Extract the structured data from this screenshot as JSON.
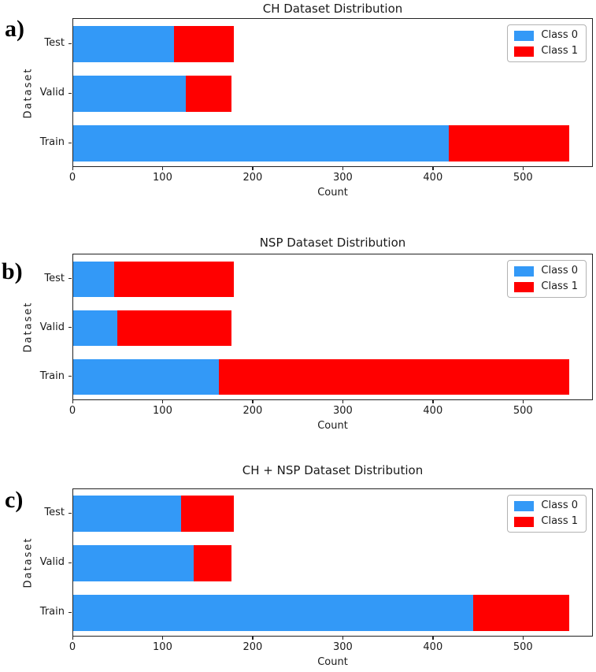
{
  "figure": {
    "background": "#ffffff",
    "class0_color": "#3399f7",
    "class1_color": "#ff0000"
  },
  "chart_data": [
    {
      "type": "bar",
      "orientation": "horizontal",
      "stacked": true,
      "panel_label": "a)",
      "title": "CH Dataset Distribution",
      "xlabel": "Count",
      "ylabel": "Dataset",
      "categories": [
        "Test",
        "Valid",
        "Train"
      ],
      "series": [
        {
          "name": "Class 0",
          "color": "#3399f7",
          "values": [
            112,
            125,
            417
          ]
        },
        {
          "name": "Class 1",
          "color": "#ff0000",
          "values": [
            66,
            51,
            133
          ]
        }
      ],
      "totals": [
        178,
        176,
        550
      ],
      "xticks": [
        0,
        100,
        200,
        300,
        400,
        500
      ],
      "xlim": [
        0,
        577.5
      ],
      "grid": false,
      "legend_position": "upper right"
    },
    {
      "type": "bar",
      "orientation": "horizontal",
      "stacked": true,
      "panel_label": "b)",
      "title": "NSP Dataset Distribution",
      "xlabel": "Count",
      "ylabel": "Dataset",
      "categories": [
        "Test",
        "Valid",
        "Train"
      ],
      "series": [
        {
          "name": "Class 0",
          "color": "#3399f7",
          "values": [
            45,
            49,
            162
          ]
        },
        {
          "name": "Class 1",
          "color": "#ff0000",
          "values": [
            133,
            127,
            388
          ]
        }
      ],
      "totals": [
        178,
        176,
        550
      ],
      "xticks": [
        0,
        100,
        200,
        300,
        400,
        500
      ],
      "xlim": [
        0,
        577.5
      ],
      "grid": false,
      "legend_position": "upper right"
    },
    {
      "type": "bar",
      "orientation": "horizontal",
      "stacked": true,
      "panel_label": "c)",
      "title": "CH + NSP Dataset Distribution",
      "xlabel": "Count",
      "ylabel": "Dataset",
      "categories": [
        "Test",
        "Valid",
        "Train"
      ],
      "series": [
        {
          "name": "Class 0",
          "color": "#3399f7",
          "values": [
            120,
            134,
            444
          ]
        },
        {
          "name": "Class 1",
          "color": "#ff0000",
          "values": [
            58,
            42,
            106
          ]
        }
      ],
      "totals": [
        178,
        176,
        550
      ],
      "xticks": [
        0,
        100,
        200,
        300,
        400,
        500
      ],
      "xlim": [
        0,
        577.5
      ],
      "grid": false,
      "legend_position": "upper right"
    }
  ]
}
